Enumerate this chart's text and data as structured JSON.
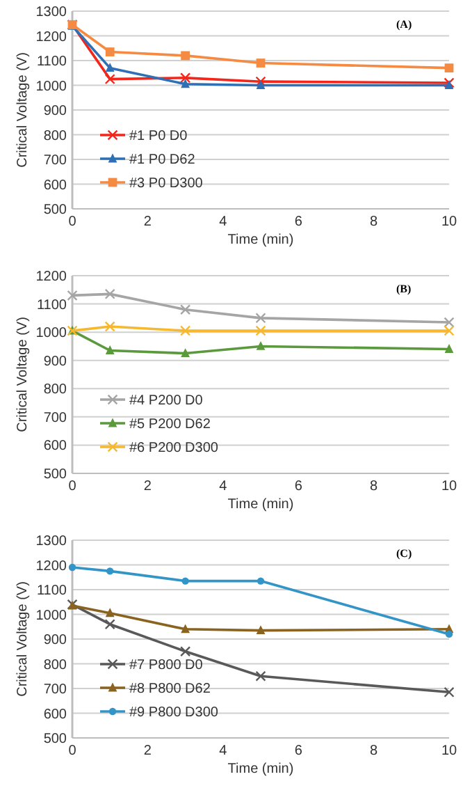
{
  "chart_data": [
    {
      "type": "line",
      "annotations": [
        "(A)"
      ],
      "xlabel": "Time (min)",
      "ylabel": "Critical Voltage (V)",
      "x": [
        0,
        1,
        3,
        5,
        10
      ],
      "xlim": [
        0,
        10
      ],
      "xticks": [
        0,
        2,
        4,
        6,
        8,
        10
      ],
      "ylim": [
        500,
        1300
      ],
      "yticks": [
        500,
        600,
        700,
        800,
        900,
        1000,
        1100,
        1200,
        1300
      ],
      "grid": "y",
      "legend": "bottom left",
      "series": [
        {
          "name": "#1 P0 D0",
          "color": "#f2261b",
          "marker": "cross",
          "values": [
            1245,
            1025,
            1030,
            1015,
            1010
          ]
        },
        {
          "name": "#1 P0 D62",
          "color": "#2e6fb5",
          "marker": "triangle",
          "values": [
            1240,
            1070,
            1005,
            1000,
            1000
          ]
        },
        {
          "name": "#3 P0 D300",
          "color": "#f58a42",
          "marker": "square",
          "values": [
            1245,
            1135,
            1120,
            1090,
            1070
          ]
        }
      ]
    },
    {
      "type": "line",
      "annotations": [
        "(B)"
      ],
      "xlabel": "Time (min)",
      "ylabel": "Critical Voltage (V)",
      "x": [
        0,
        1,
        3,
        5,
        10
      ],
      "xlim": [
        0,
        10
      ],
      "xticks": [
        0,
        2,
        4,
        6,
        8,
        10
      ],
      "ylim": [
        500,
        1200
      ],
      "yticks": [
        500,
        600,
        700,
        800,
        900,
        1000,
        1100,
        1200
      ],
      "grid": "y",
      "legend": "bottom left",
      "series": [
        {
          "name": "#4 P200 D0",
          "color": "#a5a5a5",
          "marker": "cross",
          "values": [
            1130,
            1135,
            1080,
            1050,
            1035
          ]
        },
        {
          "name": "#5 P200 D62",
          "color": "#5b9a3c",
          "marker": "triangle",
          "values": [
            1005,
            935,
            925,
            950,
            940
          ]
        },
        {
          "name": "#6 P200 D300",
          "color": "#f5b82e",
          "marker": "cross",
          "values": [
            1005,
            1020,
            1005,
            1005,
            1005
          ]
        }
      ]
    },
    {
      "type": "line",
      "annotations": [
        "(C)"
      ],
      "xlabel": "Time (min)",
      "ylabel": "Critical Voltage (V)",
      "x": [
        0,
        1,
        3,
        5,
        10
      ],
      "xlim": [
        0,
        10
      ],
      "xticks": [
        0,
        2,
        4,
        6,
        8,
        10
      ],
      "ylim": [
        500,
        1300
      ],
      "yticks": [
        500,
        600,
        700,
        800,
        900,
        1000,
        1100,
        1200,
        1300
      ],
      "grid": "y",
      "legend": "bottom left",
      "series": [
        {
          "name": "#7 P800 D0",
          "color": "#595959",
          "marker": "cross",
          "values": [
            1040,
            960,
            850,
            750,
            685
          ]
        },
        {
          "name": "#8 P800 D62",
          "color": "#8b6320",
          "marker": "triangle",
          "values": [
            1035,
            1005,
            940,
            935,
            940
          ]
        },
        {
          "name": "#9 P800 D300",
          "color": "#3394c8",
          "marker": "circle",
          "values": [
            1190,
            1175,
            1135,
            1135,
            920
          ]
        }
      ]
    }
  ]
}
